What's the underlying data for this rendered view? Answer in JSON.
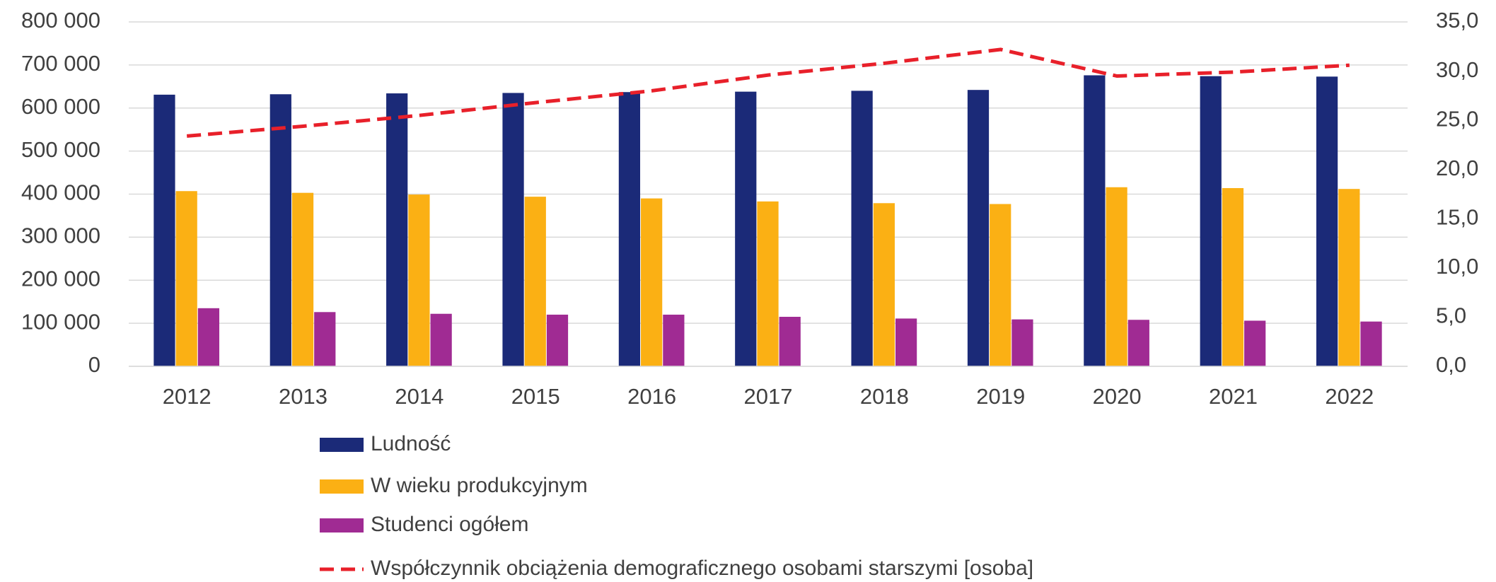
{
  "chart_data": {
    "type": "bar",
    "categories": [
      "2012",
      "2013",
      "2014",
      "2015",
      "2016",
      "2017",
      "2018",
      "2019",
      "2020",
      "2021",
      "2022"
    ],
    "series": [
      {
        "name": "Ludność",
        "type": "bar",
        "color": "#1b2a78",
        "values": [
          631000,
          632000,
          634000,
          635000,
          637000,
          638000,
          640000,
          642000,
          676000,
          674000,
          673000
        ]
      },
      {
        "name": "W wieku produkcyjnym",
        "type": "bar",
        "color": "#fbb014",
        "values": [
          407000,
          403000,
          399000,
          394000,
          390000,
          383000,
          379000,
          377000,
          416000,
          414000,
          412000
        ]
      },
      {
        "name": "Studenci ogółem",
        "type": "bar",
        "color": "#a02b93",
        "values": [
          135000,
          126000,
          122000,
          120000,
          120000,
          115000,
          111000,
          109000,
          108000,
          106000,
          104000
        ]
      },
      {
        "name": "Współczynnik obciążenia demograficznego osobami starszymi [osoba]",
        "type": "line",
        "axis": "y2",
        "color": "#e8202a",
        "values": [
          23.4,
          24.4,
          25.5,
          26.8,
          28.0,
          29.6,
          30.8,
          32.2,
          29.5,
          29.9,
          30.6
        ]
      }
    ],
    "ylim": [
      0,
      800000
    ],
    "yticks": [
      {
        "value": 0,
        "label": "0"
      },
      {
        "value": 100000,
        "label": "100 000"
      },
      {
        "value": 200000,
        "label": "200 000"
      },
      {
        "value": 300000,
        "label": "300 000"
      },
      {
        "value": 400000,
        "label": "400 000"
      },
      {
        "value": 500000,
        "label": "500 000"
      },
      {
        "value": 600000,
        "label": "600 000"
      },
      {
        "value": 700000,
        "label": "700 000"
      },
      {
        "value": 800000,
        "label": "800 000"
      }
    ],
    "y2lim": [
      0,
      35
    ],
    "y2ticks": [
      {
        "value": 0,
        "label": "0,0"
      },
      {
        "value": 5,
        "label": "5,0"
      },
      {
        "value": 10,
        "label": "10,0"
      },
      {
        "value": 15,
        "label": "15,0"
      },
      {
        "value": 20,
        "label": "20,0"
      },
      {
        "value": 25,
        "label": "25,0"
      },
      {
        "value": 30,
        "label": "30,0"
      },
      {
        "value": 35,
        "label": "35,0"
      }
    ],
    "grid": true,
    "legend": "bottom"
  }
}
